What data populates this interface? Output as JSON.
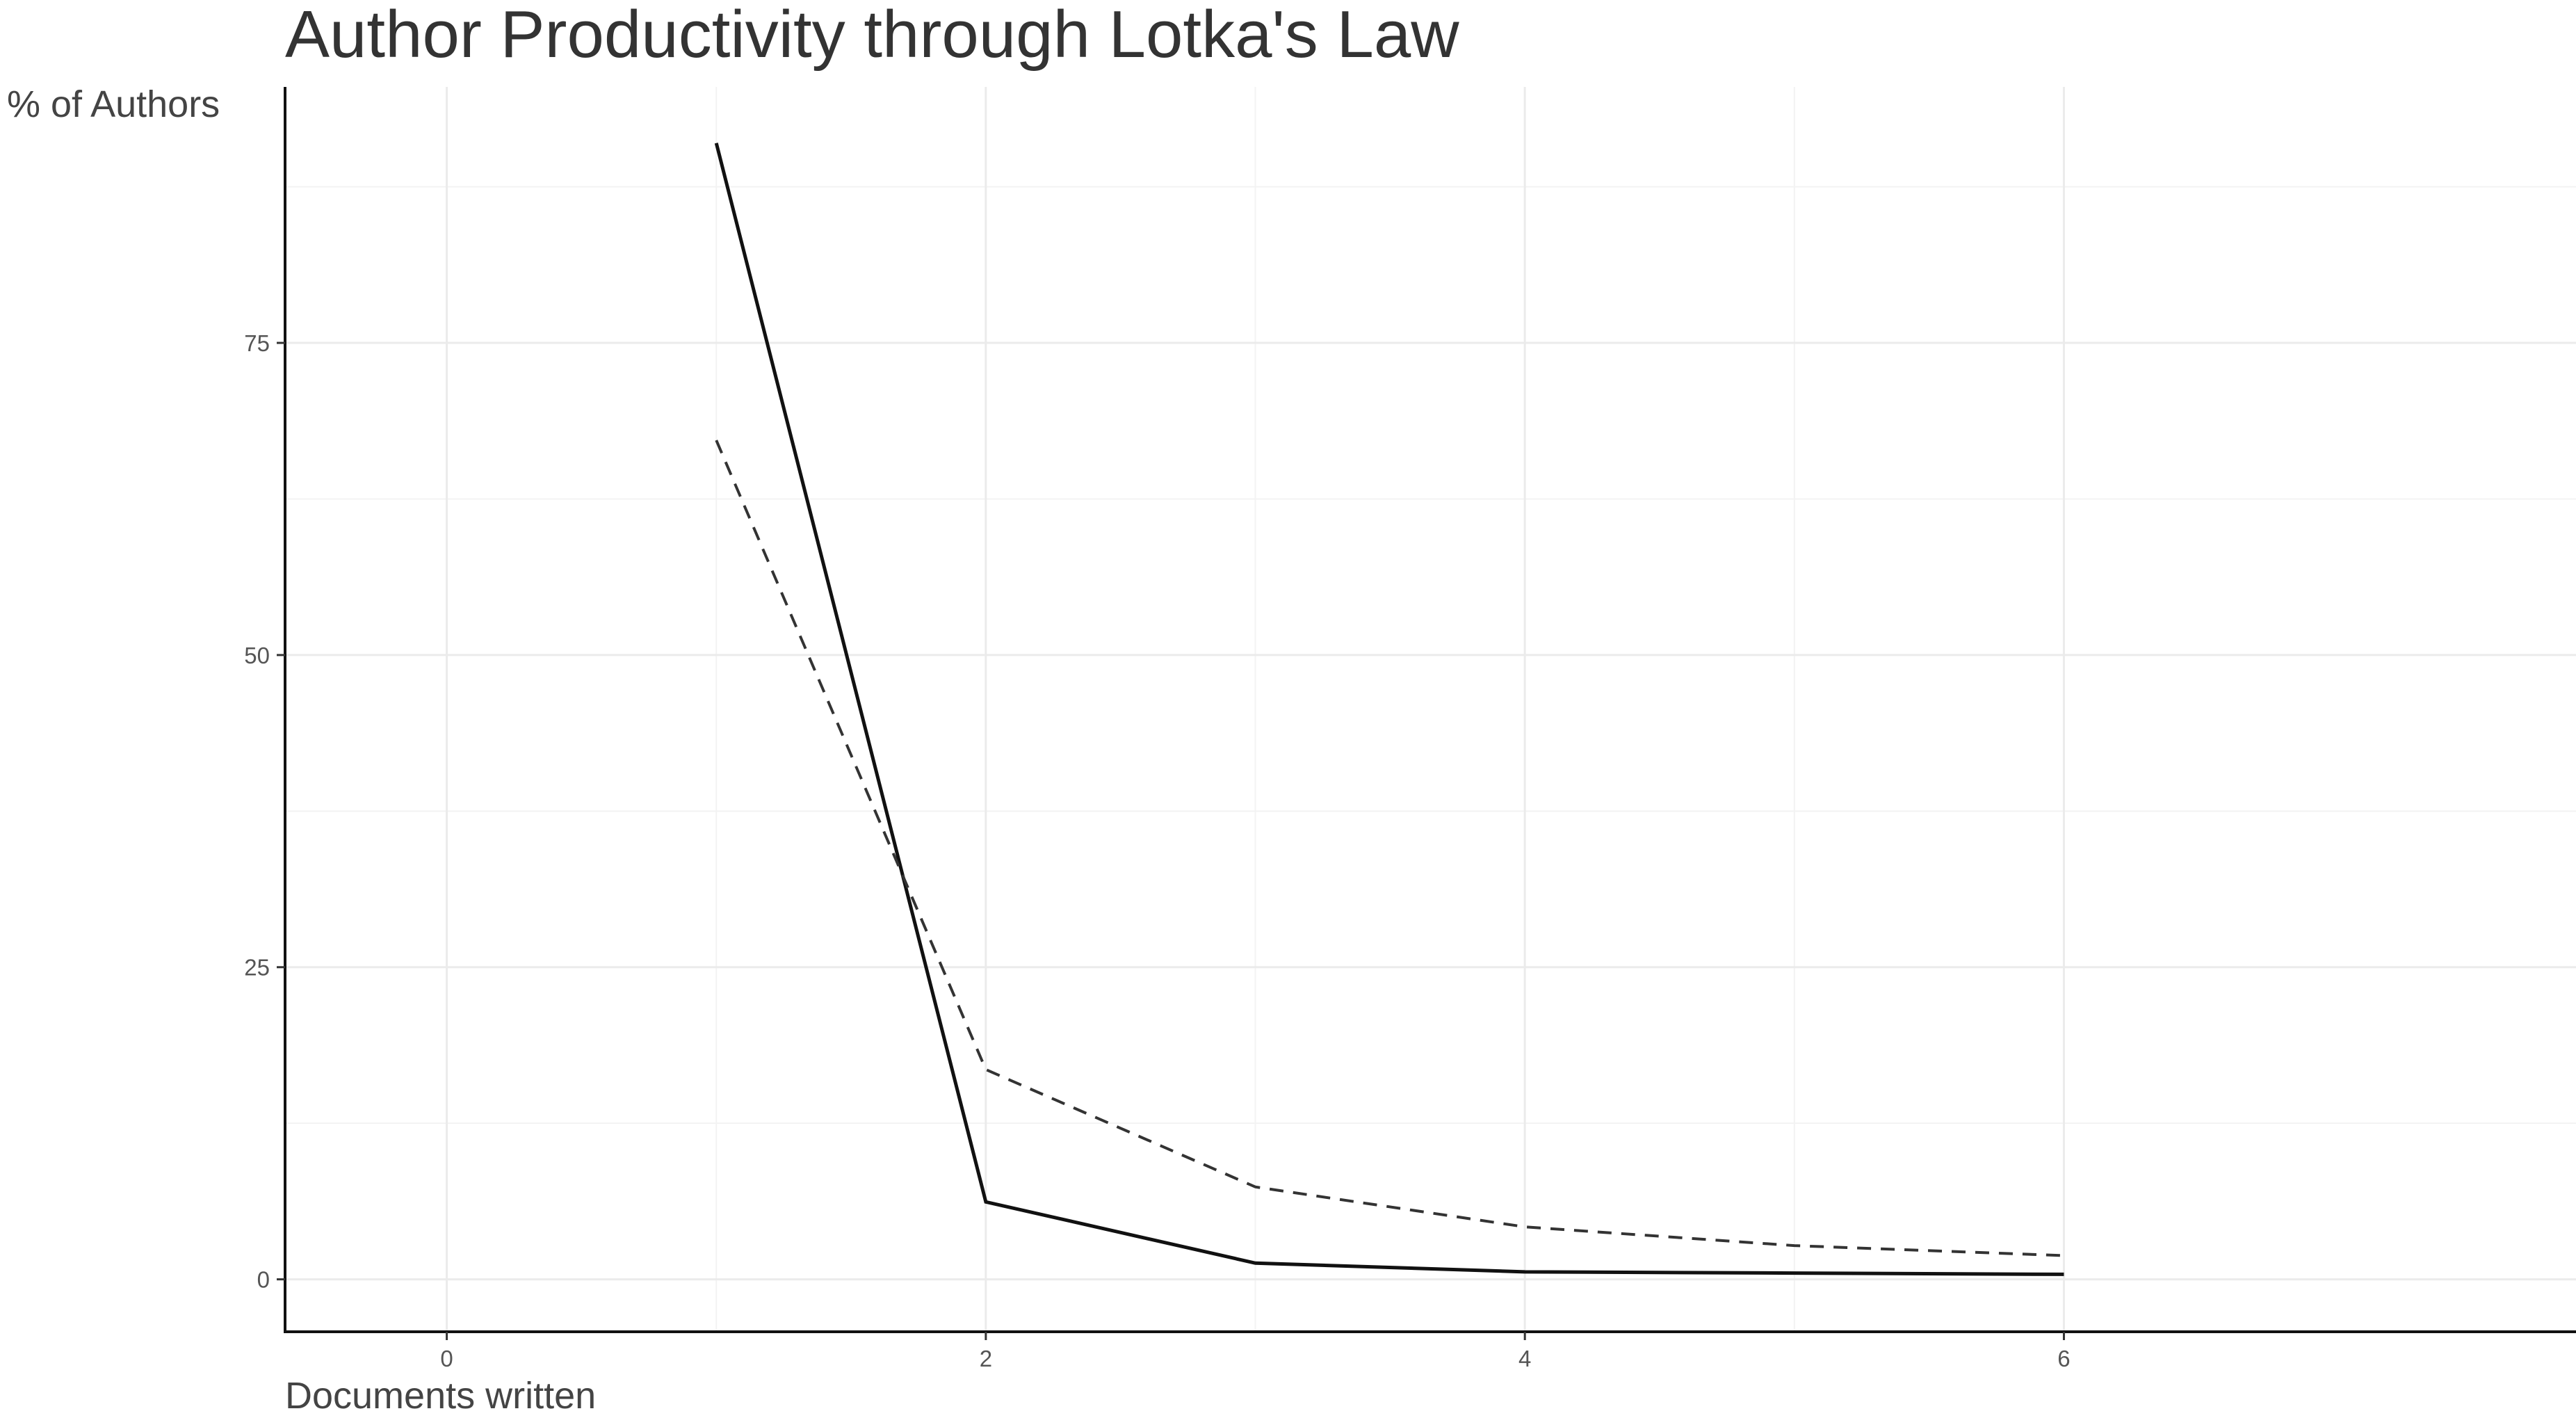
{
  "chart_data": {
    "type": "line",
    "title": "Author Productivity through Lotka's Law",
    "xlabel": "Documents written",
    "ylabel": "% of Authors",
    "xlim": [
      -0.6,
      7.9
    ],
    "ylim": [
      -4.2,
      95.5
    ],
    "x_ticks": [
      0,
      2,
      4,
      6
    ],
    "y_ticks": [
      0,
      25,
      50,
      75
    ],
    "grid": true,
    "legend": "none",
    "series": [
      {
        "style": "solid",
        "color": "#111111",
        "x": [
          1,
          2,
          3,
          4,
          5,
          6
        ],
        "y": [
          91.0,
          6.2,
          1.3,
          0.6,
          0.5,
          0.4
        ]
      },
      {
        "style": "dashed",
        "color": "#333333",
        "x": [
          1,
          2,
          3,
          4,
          5,
          6
        ],
        "y": [
          67.2,
          16.8,
          7.4,
          4.2,
          2.7,
          1.9
        ]
      }
    ]
  }
}
